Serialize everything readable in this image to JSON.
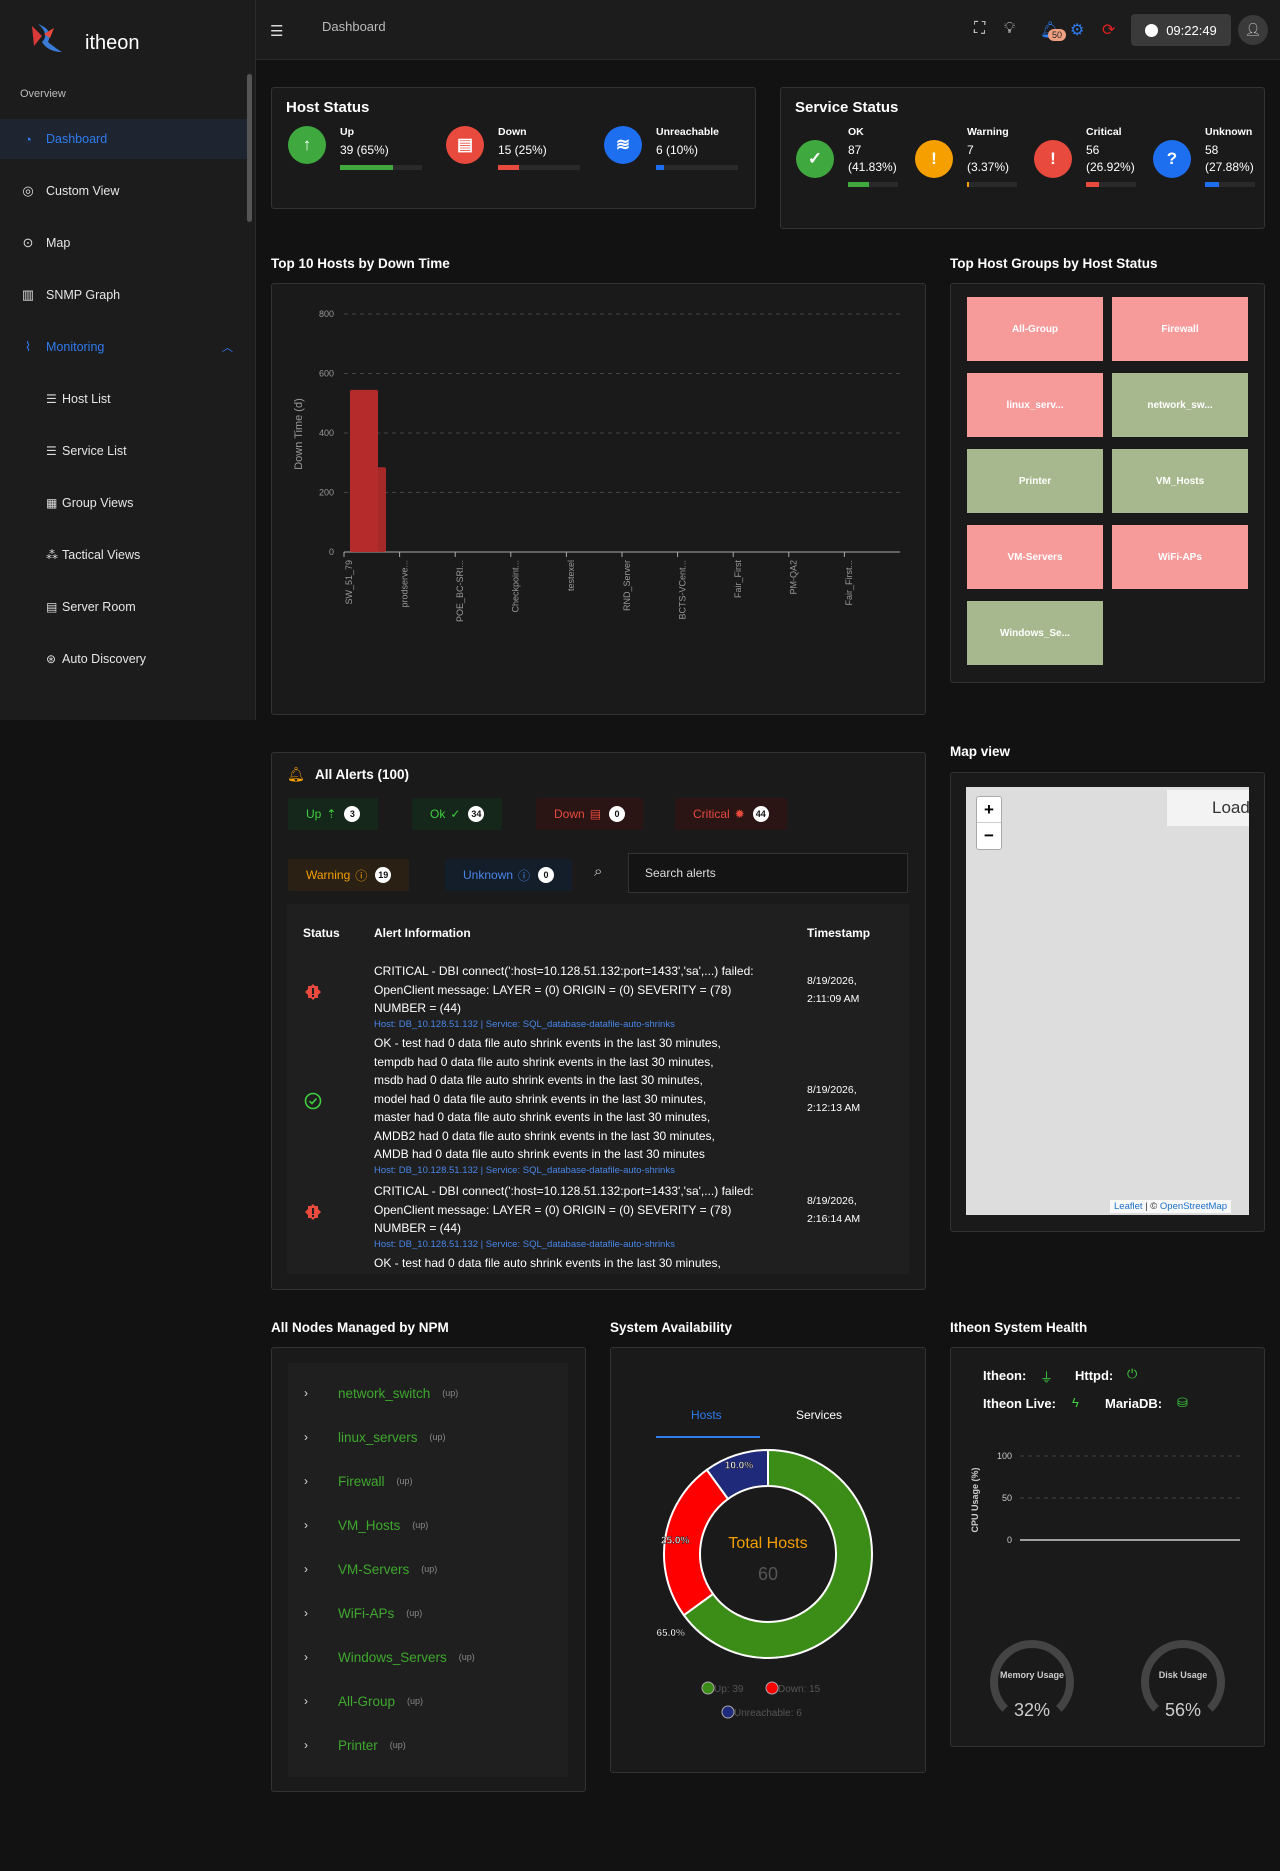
{
  "app": {
    "name": "itheon",
    "section": "Overview",
    "breadcrumb": "Dashboard",
    "clock": "09:22:49",
    "notif_count": "50"
  },
  "sidebar": {
    "items": [
      {
        "label": "Dashboard",
        "icon": "dashboard-icon"
      },
      {
        "label": "Custom View",
        "icon": "globe-icon"
      },
      {
        "label": "Map",
        "icon": "map-pin-icon"
      },
      {
        "label": "SNMP Graph",
        "icon": "bar-chart-icon"
      },
      {
        "label": "Monitoring",
        "icon": "line-chart-icon"
      }
    ],
    "subitems": [
      {
        "label": "Host List"
      },
      {
        "label": "Service List"
      },
      {
        "label": "Group Views"
      },
      {
        "label": "Tactical Views"
      },
      {
        "label": "Server Room"
      },
      {
        "label": "Auto Discovery"
      }
    ]
  },
  "host_status": {
    "title": "Host Status",
    "items": [
      {
        "label": "Up",
        "value": "39 (65%)",
        "fraction": 0.65,
        "color": "#3fa83f"
      },
      {
        "label": "Down",
        "value": "15 (25%)",
        "fraction": 0.25,
        "color": "#e84a3d"
      },
      {
        "label": "Unreachable",
        "value": "6 (10%)",
        "fraction": 0.1,
        "color": "#1e6ff0"
      }
    ]
  },
  "service_status": {
    "title": "Service Status",
    "items": [
      {
        "label": "OK",
        "v1": "87",
        "v2": "(41.83%)",
        "fraction": 0.4183,
        "color": "#3fa83f"
      },
      {
        "label": "Warning",
        "v1": "7",
        "v2": "(3.37%)",
        "fraction": 0.0337,
        "color": "#f5a000"
      },
      {
        "label": "Critical",
        "v1": "56",
        "v2": "(26.92%)",
        "fraction": 0.2692,
        "color": "#e84a3d"
      },
      {
        "label": "Unknown",
        "v1": "58",
        "v2": "(27.88%)",
        "fraction": 0.2788,
        "color": "#1e6ff0"
      }
    ]
  },
  "top10": {
    "title": "Top 10 Hosts by Down Time"
  },
  "chart_data": [
    {
      "type": "bar",
      "title": "Top 10 Hosts by Down Time",
      "ylabel": "Down Time (d)",
      "ylim": [
        0,
        800
      ],
      "yticks": [
        "0",
        "200",
        "400",
        "600",
        "800"
      ],
      "categories": [
        "SW_51_79",
        "prodserve...",
        "POE_BC-SRI...",
        "Checkpoint...",
        "testexel",
        "RND_Server",
        "BCTS-VCent...",
        "Fair_First",
        "PM-QA2",
        "Fair_First..."
      ],
      "values": [
        545,
        285,
        0,
        0,
        0,
        0,
        0,
        0,
        0,
        0
      ],
      "color": "#b52b2b"
    },
    {
      "type": "pie",
      "title": "Total Hosts",
      "total": "60",
      "categories": [
        "Up",
        "Down",
        "Unreachable"
      ],
      "values": [
        39,
        15,
        6
      ],
      "labels": [
        "65.0%",
        "25.0%",
        "10.0%"
      ],
      "colors": [
        "#3c8d17",
        "#ff0000",
        "#1f2a7a"
      ],
      "legend": [
        "Up: 39",
        "Down: 15",
        "Unreachable: 6"
      ]
    },
    {
      "type": "line",
      "ylabel": "CPU Usage (%)",
      "ylim": [
        0,
        100
      ],
      "yticks": [
        "0",
        "50",
        "100"
      ],
      "values": [
        0,
        0,
        0
      ]
    }
  ],
  "groups": {
    "title": "Top Host Groups by Host Status",
    "items": [
      {
        "label": "All-Group",
        "color": "red"
      },
      {
        "label": "Firewall",
        "color": "red"
      },
      {
        "label": "linux_serv...",
        "color": "red"
      },
      {
        "label": "network_sw...",
        "color": "green"
      },
      {
        "label": "Printer",
        "color": "green"
      },
      {
        "label": "VM_Hosts",
        "color": "green"
      },
      {
        "label": "VM-Servers",
        "color": "red"
      },
      {
        "label": "WiFi-APs",
        "color": "red"
      },
      {
        "label": "Windows_Se...",
        "color": "green"
      }
    ]
  },
  "alerts": {
    "title": "All Alerts (100)",
    "chips": [
      {
        "label": "Up",
        "count": "3"
      },
      {
        "label": "Ok",
        "count": "34"
      },
      {
        "label": "Down",
        "count": "0"
      },
      {
        "label": "Critical",
        "count": "44"
      },
      {
        "label": "Warning",
        "count": "19"
      },
      {
        "label": "Unknown",
        "count": "0"
      }
    ],
    "search_placeholder": "Search alerts",
    "headers": [
      "Status",
      "Alert Information",
      "Timestamp"
    ],
    "rows": [
      {
        "status": "critical",
        "lines": [
          "CRITICAL - DBI connect(':host=10.128.51.132:port=1433','sa',...) failed:",
          "OpenClient message: LAYER = (0) ORIGIN = (0) SEVERITY = (78)",
          "NUMBER = (44)"
        ],
        "host": "Host: DB_10.128.51.132 | Service: SQL_database-datafile-auto-shrinks",
        "ts1": "8/19/2026,",
        "ts2": "2:11:09 AM"
      },
      {
        "status": "ok",
        "lines": [
          "OK - test had 0 data file auto shrink events in the last 30 minutes,",
          "tempdb had 0 data file auto shrink events in the last 30 minutes,",
          "msdb had 0 data file auto shrink events in the last 30 minutes,",
          "model had 0 data file auto shrink events in the last 30 minutes,",
          "master had 0 data file auto shrink events in the last 30 minutes,",
          "AMDB2 had 0 data file auto shrink events in the last 30 minutes,",
          "AMDB had 0 data file auto shrink events in the last 30 minutes"
        ],
        "host": "Host: DB_10.128.51.132 | Service: SQL_database-datafile-auto-shrinks",
        "ts1": "8/19/2026,",
        "ts2": "2:12:13 AM"
      },
      {
        "status": "critical",
        "lines": [
          "CRITICAL - DBI connect(':host=10.128.51.132:port=1433','sa',...) failed:",
          "OpenClient message: LAYER = (0) ORIGIN = (0) SEVERITY = (78)",
          "NUMBER = (44)"
        ],
        "host": "Host: DB_10.128.51.132 | Service: SQL_database-datafile-auto-shrinks",
        "ts1": "8/19/2026,",
        "ts2": "2:16:14 AM"
      },
      {
        "status": "ok",
        "lines": [
          "OK - test had 0 data file auto shrink events in the last 30 minutes,"
        ],
        "host": "",
        "ts1": "",
        "ts2": ""
      }
    ]
  },
  "mapview": {
    "title": "Map view",
    "loading": "Loading",
    "zoom_in": "+",
    "zoom_out": "−",
    "attr_leaflet": "Leaflet",
    "attr_sep": " | © ",
    "attr_osm": "OpenStreetMap"
  },
  "nodes": {
    "title": "All Nodes Managed by NPM",
    "items": [
      {
        "name": "network_switch",
        "state": "(up)"
      },
      {
        "name": "linux_servers",
        "state": "(up)"
      },
      {
        "name": "Firewall",
        "state": "(up)"
      },
      {
        "name": "VM_Hosts",
        "state": "(up)"
      },
      {
        "name": "VM-Servers",
        "state": "(up)"
      },
      {
        "name": "WiFi-APs",
        "state": "(up)"
      },
      {
        "name": "Windows_Servers",
        "state": "(up)"
      },
      {
        "name": "All-Group",
        "state": "(up)"
      },
      {
        "name": "Printer",
        "state": "(up)"
      }
    ]
  },
  "availability": {
    "title": "System Availability",
    "tabs": [
      "Hosts",
      "Services"
    ]
  },
  "health": {
    "title": "Itheon System Health",
    "itheon": "Itheon:",
    "httpd": "Httpd:",
    "live": "Itheon Live:",
    "mariadb": "MariaDB:",
    "memory_label": "Memory Usage",
    "memory_value": "32%",
    "memory_fraction": 0.32,
    "disk_label": "Disk Usage",
    "disk_value": "56%",
    "disk_fraction": 0.56
  }
}
